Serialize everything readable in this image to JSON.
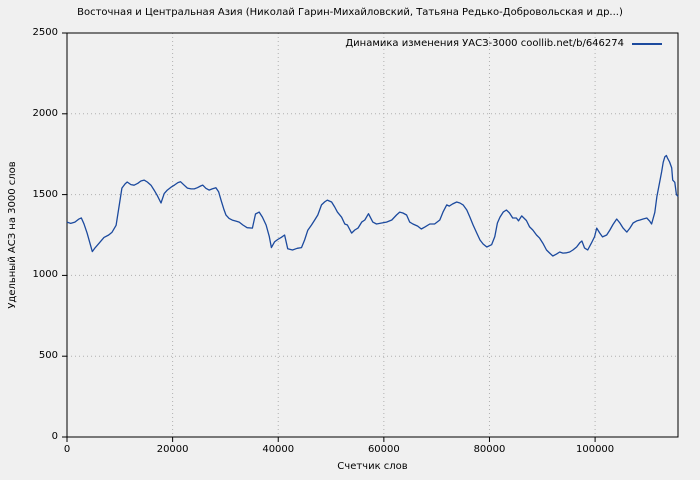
{
  "figure": {
    "title": "Восточная и Центральная Азия (Николай Гарин-Михайловский, Татьяна Редько-Добровольская и др...)",
    "background_color": "#f0f0f0"
  },
  "chart_data": {
    "type": "line",
    "title": "Восточная и Центральная Азия (Николай Гарин-Михайловский, Татьяна Редько-Добровольская и др...)",
    "xlabel": "Счетчик слов",
    "ylabel": "Удельный АСЗ на 3000 слов",
    "legend": {
      "label": "Динамика изменения УАСЗ-3000 coollib.net/b/646274",
      "position": "top-right-inside"
    },
    "xlim": [
      0,
      115700
    ],
    "ylim": [
      0,
      2500
    ],
    "x_ticks": [
      0,
      20000,
      40000,
      60000,
      80000,
      100000
    ],
    "y_ticks": [
      0,
      500,
      1000,
      1500,
      2000,
      2500
    ],
    "grid": "dotted",
    "line_color": "#1c4a9e",
    "series": [
      {
        "name": "Динамика изменения УАСЗ-3000 coollib.net/b/646274",
        "points": [
          [
            0,
            1330
          ],
          [
            700,
            1322
          ],
          [
            1500,
            1330
          ],
          [
            2200,
            1348
          ],
          [
            2700,
            1356
          ],
          [
            3200,
            1320
          ],
          [
            3800,
            1262
          ],
          [
            4300,
            1205
          ],
          [
            4800,
            1147
          ],
          [
            5300,
            1170
          ],
          [
            6100,
            1200
          ],
          [
            7000,
            1235
          ],
          [
            7900,
            1250
          ],
          [
            8500,
            1266
          ],
          [
            9300,
            1310
          ],
          [
            9900,
            1436
          ],
          [
            10400,
            1540
          ],
          [
            11000,
            1566
          ],
          [
            11400,
            1578
          ],
          [
            12100,
            1562
          ],
          [
            12700,
            1558
          ],
          [
            13400,
            1570
          ],
          [
            14000,
            1584
          ],
          [
            14600,
            1590
          ],
          [
            15200,
            1578
          ],
          [
            15900,
            1558
          ],
          [
            16500,
            1528
          ],
          [
            17100,
            1494
          ],
          [
            17800,
            1448
          ],
          [
            18400,
            1506
          ],
          [
            19000,
            1528
          ],
          [
            19700,
            1546
          ],
          [
            20400,
            1560
          ],
          [
            21000,
            1574
          ],
          [
            21500,
            1580
          ],
          [
            22200,
            1558
          ],
          [
            22800,
            1540
          ],
          [
            23500,
            1535
          ],
          [
            24100,
            1535
          ],
          [
            24700,
            1543
          ],
          [
            25300,
            1553
          ],
          [
            25700,
            1559
          ],
          [
            26300,
            1539
          ],
          [
            26900,
            1528
          ],
          [
            27500,
            1535
          ],
          [
            28200,
            1543
          ],
          [
            28700,
            1518
          ],
          [
            29200,
            1462
          ],
          [
            29700,
            1410
          ],
          [
            30100,
            1373
          ],
          [
            30700,
            1353
          ],
          [
            31300,
            1342
          ],
          [
            32000,
            1336
          ],
          [
            32600,
            1330
          ],
          [
            33300,
            1312
          ],
          [
            34100,
            1295
          ],
          [
            35100,
            1293
          ],
          [
            35700,
            1380
          ],
          [
            36400,
            1392
          ],
          [
            37000,
            1361
          ],
          [
            37700,
            1312
          ],
          [
            38300,
            1240
          ],
          [
            38700,
            1172
          ],
          [
            39300,
            1207
          ],
          [
            39900,
            1222
          ],
          [
            40600,
            1236
          ],
          [
            41200,
            1250
          ],
          [
            41800,
            1165
          ],
          [
            42700,
            1157
          ],
          [
            43600,
            1168
          ],
          [
            44400,
            1172
          ],
          [
            45000,
            1219
          ],
          [
            45600,
            1280
          ],
          [
            46300,
            1312
          ],
          [
            46900,
            1343
          ],
          [
            47500,
            1374
          ],
          [
            48200,
            1436
          ],
          [
            48800,
            1455
          ],
          [
            49300,
            1466
          ],
          [
            50100,
            1454
          ],
          [
            50700,
            1423
          ],
          [
            51200,
            1392
          ],
          [
            52000,
            1360
          ],
          [
            52600,
            1318
          ],
          [
            53100,
            1312
          ],
          [
            53900,
            1262
          ],
          [
            54500,
            1281
          ],
          [
            55100,
            1293
          ],
          [
            55800,
            1330
          ],
          [
            56400,
            1343
          ],
          [
            57100,
            1382
          ],
          [
            57900,
            1330
          ],
          [
            58600,
            1318
          ],
          [
            59600,
            1324
          ],
          [
            60500,
            1330
          ],
          [
            61500,
            1343
          ],
          [
            62400,
            1374
          ],
          [
            63000,
            1392
          ],
          [
            63600,
            1386
          ],
          [
            64300,
            1374
          ],
          [
            64900,
            1330
          ],
          [
            65500,
            1318
          ],
          [
            66400,
            1305
          ],
          [
            67100,
            1287
          ],
          [
            67800,
            1300
          ],
          [
            68700,
            1318
          ],
          [
            69600,
            1318
          ],
          [
            70600,
            1343
          ],
          [
            71200,
            1392
          ],
          [
            71900,
            1436
          ],
          [
            72400,
            1429
          ],
          [
            73000,
            1442
          ],
          [
            73800,
            1454
          ],
          [
            74400,
            1448
          ],
          [
            75000,
            1436
          ],
          [
            75700,
            1405
          ],
          [
            76300,
            1361
          ],
          [
            76900,
            1312
          ],
          [
            77600,
            1262
          ],
          [
            78200,
            1219
          ],
          [
            78800,
            1194
          ],
          [
            79500,
            1176
          ],
          [
            80400,
            1190
          ],
          [
            81000,
            1240
          ],
          [
            81500,
            1324
          ],
          [
            82000,
            1361
          ],
          [
            82600,
            1392
          ],
          [
            83200,
            1405
          ],
          [
            83800,
            1386
          ],
          [
            84400,
            1355
          ],
          [
            85100,
            1355
          ],
          [
            85500,
            1337
          ],
          [
            86100,
            1368
          ],
          [
            87000,
            1340
          ],
          [
            87600,
            1300
          ],
          [
            88200,
            1281
          ],
          [
            88900,
            1250
          ],
          [
            89500,
            1231
          ],
          [
            90100,
            1200
          ],
          [
            90800,
            1157
          ],
          [
            91400,
            1138
          ],
          [
            92000,
            1120
          ],
          [
            92700,
            1132
          ],
          [
            93300,
            1145
          ],
          [
            93900,
            1138
          ],
          [
            94600,
            1140
          ],
          [
            95200,
            1145
          ],
          [
            95800,
            1157
          ],
          [
            96500,
            1176
          ],
          [
            97100,
            1202
          ],
          [
            97500,
            1213
          ],
          [
            98000,
            1170
          ],
          [
            98600,
            1157
          ],
          [
            99300,
            1200
          ],
          [
            99900,
            1240
          ],
          [
            100300,
            1293
          ],
          [
            100900,
            1262
          ],
          [
            101400,
            1238
          ],
          [
            102200,
            1250
          ],
          [
            102800,
            1281
          ],
          [
            103400,
            1315
          ],
          [
            104100,
            1349
          ],
          [
            104700,
            1324
          ],
          [
            105300,
            1293
          ],
          [
            106000,
            1268
          ],
          [
            106600,
            1293
          ],
          [
            107200,
            1324
          ],
          [
            107900,
            1337
          ],
          [
            108500,
            1343
          ],
          [
            109100,
            1349
          ],
          [
            109800,
            1355
          ],
          [
            110300,
            1337
          ],
          [
            110700,
            1318
          ],
          [
            111300,
            1390
          ],
          [
            111700,
            1488
          ],
          [
            112200,
            1572
          ],
          [
            112600,
            1640
          ],
          [
            112900,
            1700
          ],
          [
            113200,
            1733
          ],
          [
            113500,
            1742
          ],
          [
            113700,
            1727
          ],
          [
            114100,
            1702
          ],
          [
            114500,
            1665
          ],
          [
            114700,
            1590
          ],
          [
            115100,
            1576
          ],
          [
            115400,
            1500
          ],
          [
            115700,
            1488
          ]
        ]
      }
    ]
  }
}
